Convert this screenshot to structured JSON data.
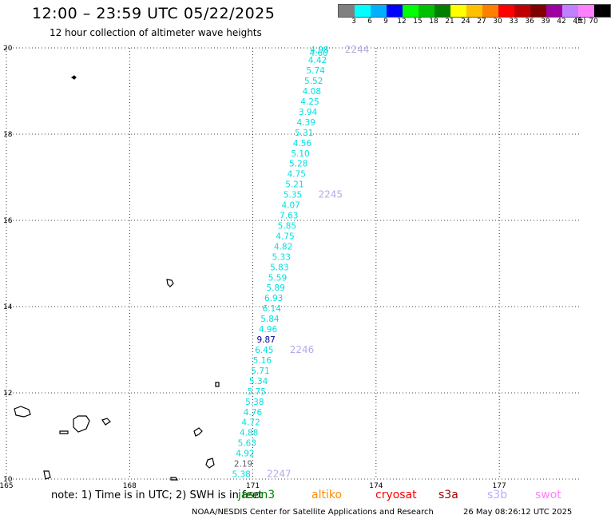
{
  "header": {
    "title": "12:00 – 23:59 UTC 05/22/2025",
    "subtitle": "12 hour collection of altimeter wave heights"
  },
  "legend": {
    "colors": [
      "#808080",
      "#00ffff",
      "#00b0ff",
      "#0000ff",
      "#00ff00",
      "#00c000",
      "#008000",
      "#ffff00",
      "#ffc000",
      "#ff8000",
      "#ff0000",
      "#c00000",
      "#800000",
      "#a000a0",
      "#c080ff",
      "#ff80ff",
      "#000000"
    ],
    "labels": [
      "3",
      "6",
      "9",
      "12",
      "15",
      "18",
      "21",
      "24",
      "27",
      "30",
      "33",
      "36",
      "39",
      "42",
      "45",
      "70"
    ],
    "unit": "(ft)"
  },
  "map": {
    "lon_ticks": [
      "165",
      "168",
      "171",
      "174",
      "177"
    ],
    "lat_ticks": [
      "20",
      "18",
      "16",
      "14",
      "12",
      "10"
    ],
    "lon_range": [
      165,
      179
    ],
    "lat_range": [
      10,
      20
    ]
  },
  "track": {
    "color": "#00e0e0",
    "highlight_color": "#000099",
    "points": [
      {
        "lat": 19.96,
        "value": "4.98"
      },
      {
        "lat": 19.89,
        "value": "4.60"
      },
      {
        "lat": 19.72,
        "value": "4.42"
      },
      {
        "lat": 19.48,
        "value": "5.74"
      },
      {
        "lat": 19.24,
        "value": "5.52"
      },
      {
        "lat": 19.0,
        "value": "4.08"
      },
      {
        "lat": 18.76,
        "value": "4.25"
      },
      {
        "lat": 18.52,
        "value": "3.94"
      },
      {
        "lat": 18.28,
        "value": "4.39"
      },
      {
        "lat": 18.04,
        "value": "5.31"
      },
      {
        "lat": 17.8,
        "value": "4.56"
      },
      {
        "lat": 17.56,
        "value": "5.10"
      },
      {
        "lat": 17.32,
        "value": "5.28"
      },
      {
        "lat": 17.08,
        "value": "4.75"
      },
      {
        "lat": 16.84,
        "value": "5.21"
      },
      {
        "lat": 16.6,
        "value": "5.35"
      },
      {
        "lat": 16.36,
        "value": "4.07"
      },
      {
        "lat": 16.12,
        "value": "7.63"
      },
      {
        "lat": 15.88,
        "value": "5.85"
      },
      {
        "lat": 15.64,
        "value": "4.75"
      },
      {
        "lat": 15.4,
        "value": "4.82"
      },
      {
        "lat": 15.16,
        "value": "5.33"
      },
      {
        "lat": 14.92,
        "value": "5.83"
      },
      {
        "lat": 14.68,
        "value": "5.59"
      },
      {
        "lat": 14.44,
        "value": "5.89"
      },
      {
        "lat": 14.2,
        "value": "6.93"
      },
      {
        "lat": 13.96,
        "value": "6.14"
      },
      {
        "lat": 13.72,
        "value": "5.84"
      },
      {
        "lat": 13.48,
        "value": "4.96"
      },
      {
        "lat": 13.24,
        "value": "9.87",
        "highlight": true
      },
      {
        "lat": 13.0,
        "value": "6.45"
      },
      {
        "lat": 12.76,
        "value": "5.16"
      },
      {
        "lat": 12.52,
        "value": "5.71"
      },
      {
        "lat": 12.28,
        "value": "5.34"
      },
      {
        "lat": 12.04,
        "value": "5.75"
      },
      {
        "lat": 11.8,
        "value": "5.38"
      },
      {
        "lat": 11.56,
        "value": "4.76"
      },
      {
        "lat": 11.32,
        "value": "4.72"
      },
      {
        "lat": 11.08,
        "value": "4.88"
      },
      {
        "lat": 10.84,
        "value": "5.63"
      },
      {
        "lat": 10.6,
        "value": "4.92"
      },
      {
        "lat": 10.36,
        "value": "2.19",
        "gray": true
      },
      {
        "lat": 10.12,
        "value": "5.38"
      }
    ],
    "time_labels": [
      {
        "lat": 19.96,
        "text": "2244"
      },
      {
        "lat": 16.6,
        "text": "2245"
      },
      {
        "lat": 13.0,
        "text": "2246"
      },
      {
        "lat": 10.12,
        "text": "2247"
      }
    ],
    "time_label_color": "#b8a8e8"
  },
  "footer": {
    "note": "note:  1) Time is in UTC; 2) SWH is in feet",
    "satellites": [
      {
        "name": "jason3",
        "color": "#008000"
      },
      {
        "name": "altiko",
        "color": "#ff8c00"
      },
      {
        "name": "cryosat",
        "color": "#ff0000"
      },
      {
        "name": "s3a",
        "color": "#a00000"
      },
      {
        "name": "s3b",
        "color": "#c0a8ff"
      },
      {
        "name": "swot",
        "color": "#ff80ff"
      }
    ],
    "center": "NOAA/NESDIS Center for Satellite Applications and Research",
    "timestamp": "26 May 08:26:12 UTC 2025"
  }
}
